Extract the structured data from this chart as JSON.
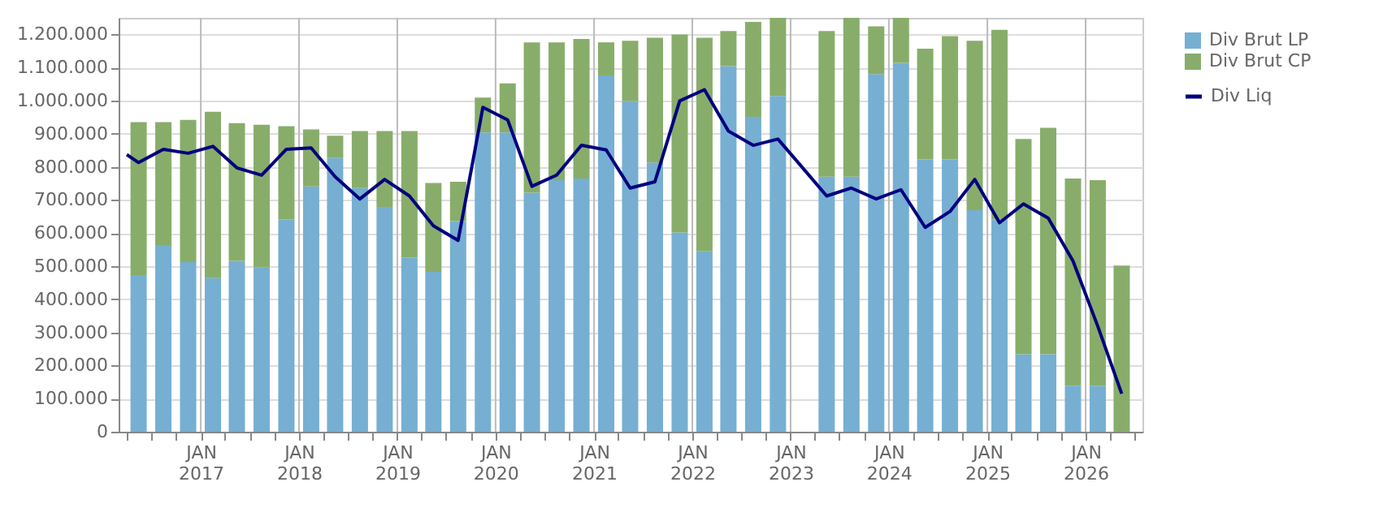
{
  "chart_data": {
    "type": "bar",
    "stacked": true,
    "x": [
      "2016-05-15",
      "2016-08-15",
      "2016-11-15",
      "2017-02-15",
      "2017-05-15",
      "2017-08-15",
      "2017-11-15",
      "2018-02-15",
      "2018-05-15",
      "2018-08-15",
      "2018-11-15",
      "2019-02-15",
      "2019-05-15",
      "2019-08-15",
      "2019-11-15",
      "2020-02-15",
      "2020-05-15",
      "2020-08-15",
      "2020-11-15",
      "2021-02-15",
      "2021-05-15",
      "2021-08-15",
      "2021-11-15",
      "2022-02-15",
      "2022-05-15",
      "2022-08-15",
      "2022-11-15",
      "2023-02-15",
      "2023-05-15",
      "2023-08-15",
      "2023-11-15",
      "2024-02-15",
      "2024-05-15",
      "2024-08-15",
      "2024-11-15",
      "2025-02-15",
      "2025-05-15",
      "2025-08-15",
      "2025-11-15",
      "2026-02-15",
      "2026-05-15"
    ],
    "series": [
      {
        "name": "Div Brut LP",
        "color": "#76afd2",
        "values": [
          473000,
          564000,
          512000,
          464000,
          516000,
          497000,
          641000,
          741000,
          827000,
          736000,
          679000,
          526000,
          483000,
          636000,
          904000,
          904000,
          722000,
          760000,
          765000,
          1076000,
          999000,
          813000,
          602000,
          545000,
          1104000,
          951000,
          1014000,
          null,
          770000,
          770000,
          1080000,
          1114000,
          822000,
          822000,
          669000,
          641000,
          234000,
          234000,
          139000,
          139000,
          0
        ]
      },
      {
        "name": "Div Brut CP",
        "color": "#88ad6a",
        "values": [
          462000,
          371000,
          430000,
          502000,
          416000,
          430000,
          282000,
          172000,
          67000,
          172000,
          229000,
          382000,
          268000,
          119000,
          105000,
          148000,
          454000,
          416000,
          421000,
          100000,
          182000,
          377000,
          598000,
          645000,
          106000,
          287000,
          236000,
          null,
          440000,
          480000,
          144000,
          136000,
          335000,
          373000,
          512000,
          573000,
          650000,
          684000,
          626000,
          621000,
          502000
        ]
      },
      {
        "name": "Div Liq",
        "type": "line",
        "color": "#000080",
        "x": [
          "2016-04-01",
          "2016-05-15",
          "2016-08-15",
          "2016-11-15",
          "2017-02-15",
          "2017-05-15",
          "2017-08-15",
          "2017-11-15",
          "2018-02-15",
          "2018-05-15",
          "2018-08-15",
          "2018-11-15",
          "2019-02-15",
          "2019-05-15",
          "2019-08-15",
          "2019-11-15",
          "2020-02-15",
          "2020-05-15",
          "2020-08-15",
          "2020-11-15",
          "2021-02-15",
          "2021-05-15",
          "2021-08-15",
          "2021-11-15",
          "2022-02-15",
          "2022-05-15",
          "2022-08-15",
          "2022-11-15",
          "2023-02-15",
          "2023-05-15",
          "2023-08-15",
          "2023-11-15",
          "2024-02-15",
          "2024-05-15",
          "2024-08-15",
          "2024-11-15",
          "2025-02-15",
          "2025-05-15",
          "2025-08-15",
          "2025-11-15",
          "2026-02-15",
          "2026-05-15"
        ],
        "values": [
          837000,
          813000,
          853000,
          841000,
          862000,
          797000,
          775000,
          853000,
          857000,
          770000,
          703000,
          762000,
          712000,
          622000,
          578000,
          980000,
          942000,
          741000,
          775000,
          865000,
          851000,
          736000,
          755000,
          999000,
          1033000,
          908000,
          865000,
          884000,
          797000,
          712000,
          736000,
          703000,
          731000,
          617000,
          665000,
          762000,
          631000,
          688000,
          645000,
          516000,
          319000,
          115000
        ]
      }
    ],
    "xlim": [
      "2016-04-01",
      "2026-07-01"
    ],
    "xticks": [
      {
        "value": "2016-04-01",
        "label": null
      },
      {
        "value": "2016-07-01",
        "label": null
      },
      {
        "value": "2016-10-01",
        "label": null
      },
      {
        "value": "2017-01-01",
        "label": "JAN 2017"
      },
      {
        "value": "2017-04-01",
        "label": null
      },
      {
        "value": "2017-07-01",
        "label": null
      },
      {
        "value": "2017-10-01",
        "label": null
      },
      {
        "value": "2018-01-01",
        "label": "JAN 2018"
      },
      {
        "value": "2018-04-01",
        "label": null
      },
      {
        "value": "2018-07-01",
        "label": null
      },
      {
        "value": "2018-10-01",
        "label": null
      },
      {
        "value": "2019-01-01",
        "label": "JAN 2019"
      },
      {
        "value": "2019-04-01",
        "label": null
      },
      {
        "value": "2019-07-01",
        "label": null
      },
      {
        "value": "2019-10-01",
        "label": null
      },
      {
        "value": "2020-01-01",
        "label": "JAN 2020"
      },
      {
        "value": "2020-04-01",
        "label": null
      },
      {
        "value": "2020-07-01",
        "label": null
      },
      {
        "value": "2020-10-01",
        "label": null
      },
      {
        "value": "2021-01-01",
        "label": "JAN 2021"
      },
      {
        "value": "2021-04-01",
        "label": null
      },
      {
        "value": "2021-07-01",
        "label": null
      },
      {
        "value": "2021-10-01",
        "label": null
      },
      {
        "value": "2022-01-01",
        "label": "JAN 2022"
      },
      {
        "value": "2022-04-01",
        "label": null
      },
      {
        "value": "2022-07-01",
        "label": null
      },
      {
        "value": "2022-10-01",
        "label": null
      },
      {
        "value": "2023-01-01",
        "label": "JAN 2023"
      },
      {
        "value": "2023-04-01",
        "label": null
      },
      {
        "value": "2023-07-01",
        "label": null
      },
      {
        "value": "2023-10-01",
        "label": null
      },
      {
        "value": "2024-01-01",
        "label": "JAN 2024"
      },
      {
        "value": "2024-04-01",
        "label": null
      },
      {
        "value": "2024-07-01",
        "label": null
      },
      {
        "value": "2024-10-01",
        "label": null
      },
      {
        "value": "2025-01-01",
        "label": "JAN 2025"
      },
      {
        "value": "2025-04-01",
        "label": null
      },
      {
        "value": "2025-07-01",
        "label": null
      },
      {
        "value": "2025-10-01",
        "label": null
      },
      {
        "value": "2026-01-01",
        "label": "JAN 2026"
      },
      {
        "value": "2026-04-01",
        "label": null
      },
      {
        "value": "2026-07-01",
        "label": null
      }
    ],
    "ylim": [
      0,
      1250000
    ],
    "yticks": [
      0,
      {
        "value": 100000,
        "label": "100.000"
      },
      {
        "value": 200000,
        "label": "200.000"
      },
      {
        "value": 300000,
        "label": "300.000"
      },
      {
        "value": 400000,
        "label": "400.000"
      },
      {
        "value": 500000,
        "label": "500.000"
      },
      {
        "value": 600000,
        "label": "600.000"
      },
      {
        "value": 700000,
        "label": "700.000"
      },
      {
        "value": 800000,
        "label": "800.000"
      },
      {
        "value": 900000,
        "label": "900.000"
      },
      {
        "value": 1000000,
        "label": "1.000.000"
      },
      {
        "value": 1100000,
        "label": "1.100.000"
      },
      {
        "value": 1200000,
        "label": "1.200.000"
      }
    ],
    "grid": true,
    "legend": "top right",
    "line_style": "solid"
  }
}
